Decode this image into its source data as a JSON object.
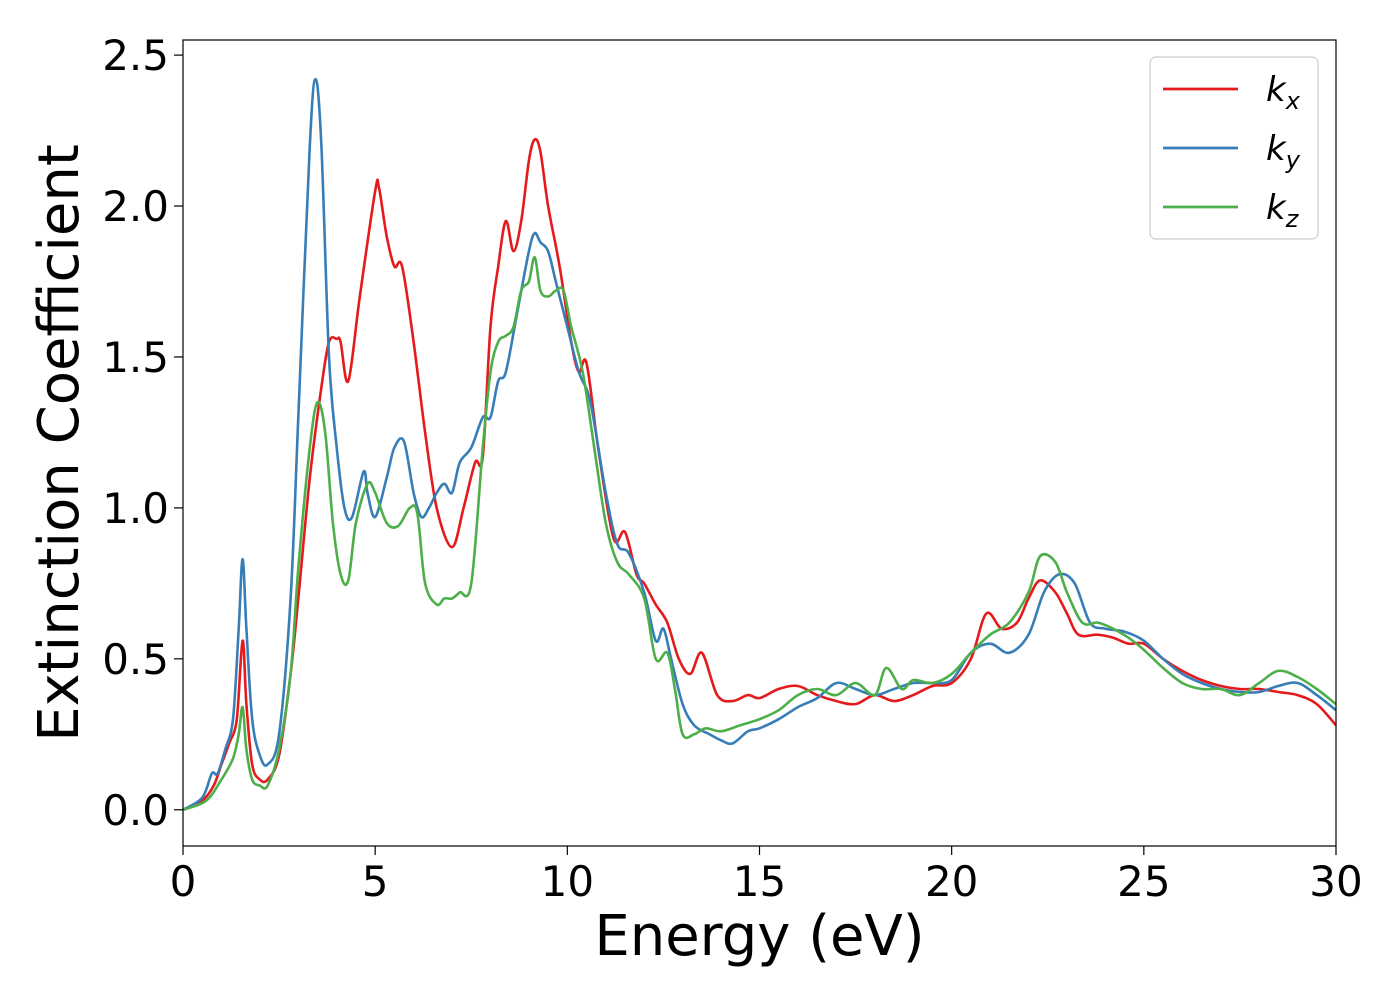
{
  "chart_data": {
    "type": "line",
    "title": "",
    "xlabel": "Energy (eV)",
    "ylabel": "Extinction Coefficient",
    "xlim": [
      0,
      30
    ],
    "ylim": [
      -0.12,
      2.55
    ],
    "xticks": [
      0,
      5,
      10,
      15,
      20,
      25,
      30
    ],
    "yticks": [
      0.0,
      0.5,
      1.0,
      1.5,
      2.0,
      2.5
    ],
    "xtick_labels": [
      "0",
      "5",
      "10",
      "15",
      "20",
      "25",
      "30"
    ],
    "ytick_labels": [
      "0.0",
      "0.5",
      "1.0",
      "1.5",
      "2.0",
      "2.5"
    ],
    "grid": false,
    "legend_position": "top-right",
    "series": [
      {
        "name": "k_x",
        "label_main": "k",
        "label_sub": "x",
        "color": "#e41a1c",
        "x": [
          0,
          0.5,
          0.8,
          1.0,
          1.2,
          1.4,
          1.55,
          1.65,
          1.8,
          2.0,
          2.2,
          2.5,
          2.8,
          3.0,
          3.3,
          3.6,
          3.8,
          4.0,
          4.1,
          4.3,
          4.6,
          5.0,
          5.1,
          5.3,
          5.5,
          5.7,
          6.0,
          6.3,
          6.6,
          7.0,
          7.3,
          7.6,
          7.8,
          8.0,
          8.2,
          8.4,
          8.6,
          8.8,
          9.0,
          9.15,
          9.3,
          9.5,
          9.8,
          10.1,
          10.3,
          10.5,
          10.8,
          11.2,
          11.5,
          11.8,
          12.0,
          12.3,
          12.6,
          12.9,
          13.2,
          13.5,
          13.9,
          14.3,
          14.7,
          15.0,
          15.5,
          16.0,
          16.5,
          17.0,
          17.5,
          18.0,
          18.5,
          19.0,
          19.5,
          20.0,
          20.5,
          20.9,
          21.3,
          21.7,
          22.0,
          22.3,
          22.7,
          23.0,
          23.3,
          23.8,
          24.2,
          24.6,
          25.0,
          25.5,
          26.0,
          26.5,
          27.0,
          27.5,
          28.0,
          28.5,
          29.0,
          29.5,
          30.0
        ],
        "y": [
          0.0,
          0.03,
          0.08,
          0.15,
          0.22,
          0.3,
          0.56,
          0.35,
          0.15,
          0.1,
          0.1,
          0.18,
          0.45,
          0.7,
          1.1,
          1.4,
          1.55,
          1.56,
          1.55,
          1.42,
          1.7,
          2.05,
          2.06,
          1.9,
          1.8,
          1.8,
          1.55,
          1.25,
          1.0,
          0.87,
          1.0,
          1.15,
          1.17,
          1.6,
          1.8,
          1.95,
          1.85,
          1.95,
          2.15,
          2.22,
          2.18,
          2.0,
          1.8,
          1.55,
          1.45,
          1.48,
          1.2,
          0.9,
          0.92,
          0.78,
          0.75,
          0.68,
          0.62,
          0.5,
          0.45,
          0.52,
          0.38,
          0.36,
          0.38,
          0.37,
          0.4,
          0.41,
          0.38,
          0.36,
          0.35,
          0.38,
          0.36,
          0.38,
          0.41,
          0.42,
          0.5,
          0.65,
          0.6,
          0.62,
          0.7,
          0.76,
          0.72,
          0.65,
          0.58,
          0.58,
          0.57,
          0.55,
          0.55,
          0.5,
          0.46,
          0.43,
          0.41,
          0.4,
          0.4,
          0.39,
          0.38,
          0.35,
          0.28
        ]
      },
      {
        "name": "k_y",
        "label_main": "k",
        "label_sub": "y",
        "color": "#377eb8",
        "x": [
          0,
          0.5,
          0.75,
          0.9,
          1.1,
          1.3,
          1.45,
          1.55,
          1.65,
          1.8,
          2.0,
          2.2,
          2.5,
          2.8,
          3.0,
          3.3,
          3.45,
          3.6,
          3.8,
          4.0,
          4.2,
          4.4,
          4.7,
          4.8,
          5.0,
          5.3,
          5.5,
          5.75,
          6.0,
          6.2,
          6.4,
          6.6,
          6.8,
          7.0,
          7.2,
          7.5,
          7.8,
          8.0,
          8.2,
          8.4,
          8.7,
          9.0,
          9.15,
          9.3,
          9.5,
          9.7,
          10.0,
          10.3,
          10.6,
          11.0,
          11.3,
          11.6,
          12.0,
          12.3,
          12.5,
          12.7,
          13.0,
          13.3,
          13.7,
          14.0,
          14.3,
          14.7,
          15.0,
          15.5,
          16.0,
          16.5,
          17.0,
          17.5,
          18.0,
          18.5,
          19.0,
          19.5,
          20.0,
          20.5,
          21.0,
          21.5,
          22.0,
          22.4,
          22.8,
          23.2,
          23.6,
          24.0,
          24.5,
          25.0,
          25.5,
          26.0,
          26.5,
          27.0,
          27.5,
          28.0,
          28.5,
          29.0,
          29.5,
          30.0
        ],
        "y": [
          0.0,
          0.04,
          0.12,
          0.12,
          0.2,
          0.3,
          0.6,
          0.83,
          0.6,
          0.3,
          0.18,
          0.15,
          0.25,
          0.7,
          1.3,
          2.2,
          2.42,
          2.2,
          1.5,
          1.2,
          1.0,
          0.97,
          1.12,
          1.05,
          0.97,
          1.1,
          1.2,
          1.22,
          1.05,
          0.97,
          1.0,
          1.05,
          1.08,
          1.05,
          1.15,
          1.2,
          1.3,
          1.3,
          1.42,
          1.45,
          1.65,
          1.85,
          1.91,
          1.88,
          1.85,
          1.75,
          1.6,
          1.45,
          1.35,
          1.05,
          0.88,
          0.85,
          0.72,
          0.56,
          0.6,
          0.5,
          0.35,
          0.28,
          0.25,
          0.23,
          0.22,
          0.26,
          0.27,
          0.3,
          0.34,
          0.37,
          0.42,
          0.4,
          0.38,
          0.4,
          0.42,
          0.42,
          0.43,
          0.52,
          0.55,
          0.52,
          0.58,
          0.72,
          0.78,
          0.75,
          0.62,
          0.6,
          0.59,
          0.56,
          0.5,
          0.45,
          0.42,
          0.4,
          0.39,
          0.39,
          0.41,
          0.42,
          0.38,
          0.33
        ]
      },
      {
        "name": "k_z",
        "label_main": "k",
        "label_sub": "z",
        "color": "#4daf4a",
        "x": [
          0,
          0.6,
          1.0,
          1.3,
          1.45,
          1.55,
          1.65,
          1.8,
          2.0,
          2.2,
          2.5,
          2.8,
          3.0,
          3.3,
          3.5,
          3.7,
          3.9,
          4.1,
          4.3,
          4.5,
          4.8,
          5.0,
          5.3,
          5.6,
          5.9,
          6.1,
          6.3,
          6.6,
          6.8,
          7.0,
          7.2,
          7.5,
          7.8,
          8.0,
          8.2,
          8.4,
          8.6,
          8.8,
          9.0,
          9.15,
          9.3,
          9.5,
          9.7,
          9.9,
          10.1,
          10.4,
          10.7,
          11.0,
          11.3,
          11.6,
          12.0,
          12.3,
          12.6,
          12.8,
          13.0,
          13.3,
          13.6,
          14.0,
          14.5,
          15.0,
          15.5,
          16.0,
          16.5,
          17.0,
          17.5,
          18.0,
          18.3,
          18.7,
          19.0,
          19.5,
          20.0,
          20.5,
          21.0,
          21.5,
          22.0,
          22.3,
          22.7,
          23.0,
          23.4,
          23.8,
          24.2,
          24.6,
          25.0,
          25.5,
          26.0,
          26.5,
          27.0,
          27.5,
          28.0,
          28.5,
          29.0,
          29.5,
          30.0
        ],
        "y": [
          0.0,
          0.03,
          0.1,
          0.17,
          0.25,
          0.34,
          0.2,
          0.1,
          0.08,
          0.08,
          0.2,
          0.45,
          0.8,
          1.2,
          1.35,
          1.25,
          0.95,
          0.78,
          0.76,
          0.95,
          1.08,
          1.05,
          0.95,
          0.94,
          1.0,
          0.98,
          0.75,
          0.68,
          0.7,
          0.7,
          0.72,
          0.75,
          1.2,
          1.45,
          1.55,
          1.57,
          1.6,
          1.72,
          1.75,
          1.83,
          1.72,
          1.7,
          1.72,
          1.72,
          1.6,
          1.45,
          1.2,
          0.95,
          0.82,
          0.78,
          0.7,
          0.5,
          0.52,
          0.4,
          0.25,
          0.25,
          0.27,
          0.26,
          0.28,
          0.3,
          0.33,
          0.38,
          0.4,
          0.38,
          0.42,
          0.38,
          0.47,
          0.4,
          0.43,
          0.42,
          0.45,
          0.52,
          0.58,
          0.62,
          0.72,
          0.84,
          0.82,
          0.72,
          0.62,
          0.62,
          0.6,
          0.57,
          0.53,
          0.47,
          0.42,
          0.4,
          0.4,
          0.38,
          0.42,
          0.46,
          0.44,
          0.4,
          0.35
        ]
      }
    ]
  }
}
